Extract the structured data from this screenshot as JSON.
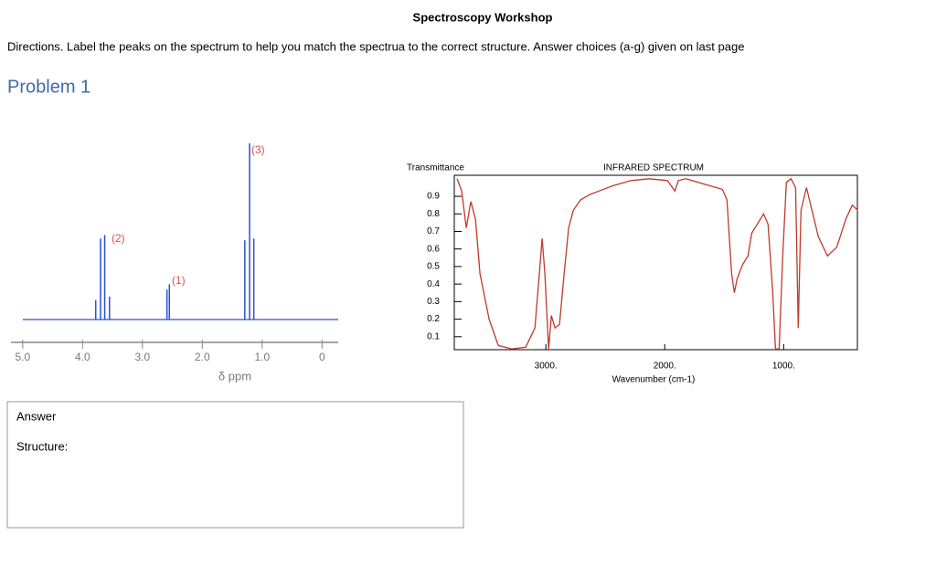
{
  "header": {
    "title": "Spectroscopy Workshop",
    "directions": "Directions.  Label the peaks on the spectrum to help you match the spectrua to the correct structure.  Answer choices (a-g) given on last page"
  },
  "problem": "Problem 1",
  "nmr": {
    "type": "spectrum",
    "xlabel": "δ ppm",
    "xlim": [
      5.15,
      -0.27
    ],
    "xticks": [
      {
        "value": 5,
        "label": "5.0"
      },
      {
        "value": 4,
        "label": "4.0"
      },
      {
        "value": 3,
        "label": "3.0"
      },
      {
        "value": 2,
        "label": "2.0"
      },
      {
        "value": 1,
        "label": "1.0"
      },
      0
    ],
    "peak_labels": [
      "(2)",
      "(1)",
      "(3)"
    ],
    "peaks": [
      {
        "ppm": 3.78,
        "intensity": 0.11
      },
      {
        "ppm": 3.7,
        "intensity": 0.46
      },
      {
        "ppm": 3.63,
        "intensity": 0.48
      },
      {
        "ppm": 3.55,
        "intensity": 0.13
      },
      {
        "ppm": 2.59,
        "intensity": 0.17
      },
      {
        "ppm": 2.55,
        "intensity": 0.2
      },
      {
        "ppm": 1.29,
        "intensity": 0.45
      },
      {
        "ppm": 1.21,
        "intensity": 1.0
      },
      {
        "ppm": 1.14,
        "intensity": 0.46
      }
    ]
  },
  "ir": {
    "type": "line",
    "title": "INFRARED SPECTRUM",
    "ylabel": "Transmittance",
    "xlabel": "Wavenumber (cm-1)",
    "xlim": [
      3770,
      380
    ],
    "ylim": [
      0,
      1.02
    ],
    "xticks": [
      {
        "value": 3000,
        "label": "3000."
      },
      {
        "value": 2000,
        "label": "2000."
      },
      {
        "value": 1000,
        "label": "1000."
      }
    ],
    "yticks": [
      0.9,
      0.8,
      0.7,
      0.6,
      0.5,
      0.4,
      0.3,
      0.2,
      0.1
    ],
    "color": "#c0392b",
    "wavenumber": [
      3746,
      3708,
      3669,
      3631,
      3592,
      3554,
      3477,
      3400,
      3285,
      3169,
      3092,
      3054,
      3031,
      3008,
      2977,
      2954,
      2923,
      2885,
      2846,
      2808,
      2769,
      2708,
      2631,
      2554,
      2438,
      2285,
      2131,
      1977,
      1915,
      1885,
      1823,
      1669,
      1515,
      1477,
      1438,
      1415,
      1392,
      1346,
      1300,
      1269,
      1223,
      1169,
      1131,
      1092,
      1069,
      1038,
      1008,
      977,
      938,
      900,
      877,
      854,
      808,
      762,
      708,
      631,
      554,
      477,
      423,
      377
    ],
    "transmittance": [
      1.0,
      0.93,
      0.72,
      0.87,
      0.77,
      0.46,
      0.2,
      0.05,
      0.03,
      0.04,
      0.15,
      0.46,
      0.66,
      0.46,
      0.03,
      0.22,
      0.15,
      0.17,
      0.46,
      0.72,
      0.82,
      0.88,
      0.91,
      0.93,
      0.96,
      0.99,
      1.0,
      0.99,
      0.93,
      0.99,
      1.0,
      0.97,
      0.94,
      0.88,
      0.46,
      0.35,
      0.43,
      0.51,
      0.56,
      0.69,
      0.74,
      0.8,
      0.74,
      0.35,
      0.03,
      0.03,
      0.56,
      0.98,
      1.0,
      0.95,
      0.15,
      0.82,
      0.95,
      0.82,
      0.67,
      0.56,
      0.61,
      0.77,
      0.85,
      0.82
    ]
  }
}
